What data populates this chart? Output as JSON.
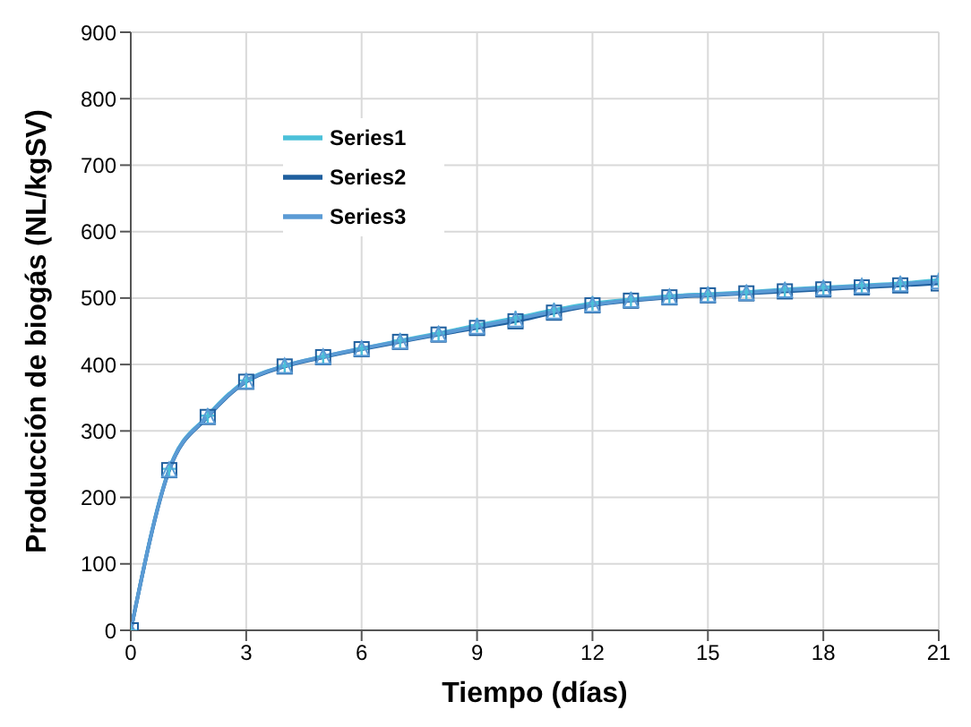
{
  "chart_data": {
    "type": "line",
    "xlabel": "Tiempo (días)",
    "ylabel": "Producción de biogás (NL/kgSV)",
    "x": [
      0,
      1,
      2,
      3,
      4,
      5,
      6,
      7,
      8,
      9,
      10,
      11,
      12,
      13,
      14,
      15,
      16,
      17,
      18,
      19,
      20,
      21
    ],
    "series": [
      {
        "name": "Series1",
        "color": "#4bc0d9",
        "marker": "cross",
        "values": [
          0,
          243,
          323,
          376,
          398,
          412,
          424,
          436,
          447,
          459,
          470,
          482,
          492,
          498,
          503,
          506,
          509,
          513,
          516,
          519,
          522,
          527
        ]
      },
      {
        "name": "Series2",
        "color": "#1f5f9e",
        "marker": "square",
        "values": [
          0,
          241,
          321,
          374,
          397,
          411,
          423,
          434,
          445,
          455,
          465,
          478,
          489,
          496,
          501,
          504,
          507,
          510,
          513,
          516,
          519,
          522
        ]
      },
      {
        "name": "Series3",
        "color": "#5b9bd5",
        "marker": "triangle",
        "values": [
          0,
          242,
          322,
          375,
          398,
          412,
          424,
          435,
          446,
          457,
          468,
          480,
          490,
          497,
          502,
          505,
          508,
          512,
          515,
          518,
          521,
          525
        ]
      }
    ],
    "xlim": [
      0,
      21
    ],
    "xticks": [
      0,
      3,
      6,
      9,
      12,
      15,
      18,
      21
    ],
    "ylim": [
      0,
      900
    ],
    "yticks": [
      0,
      100,
      200,
      300,
      400,
      500,
      600,
      700,
      800,
      900
    ],
    "grid": true,
    "legend": "top left",
    "line_style": "solid"
  }
}
